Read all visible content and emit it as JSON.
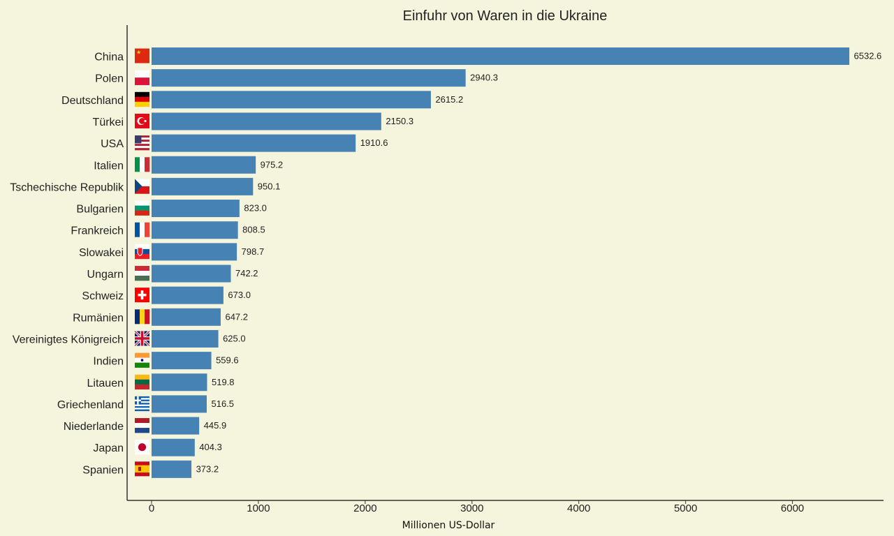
{
  "chart_data": {
    "type": "bar",
    "orientation": "horizontal",
    "title": "Einfuhr von Waren in die Ukraine",
    "xlabel": "Millionen US-Dollar",
    "ylabel": "",
    "xlim": [
      -230,
      6880
    ],
    "x_ticks": [
      0,
      1000,
      2000,
      3000,
      4000,
      5000,
      6000
    ],
    "grid": false,
    "bar_color": "#4682b4",
    "background": "#f5f4dc",
    "categories": [
      "China",
      "Polen",
      "Deutschland",
      "Türkei",
      "USA",
      "Italien",
      "Tschechische Republik",
      "Bulgarien",
      "Frankreich",
      "Slowakei",
      "Ungarn",
      "Schweiz",
      "Rumänien",
      "Vereinigtes Königreich",
      "Indien",
      "Litauen",
      "Griechenland",
      "Niederlande",
      "Japan",
      "Spanien"
    ],
    "values": [
      6532.6,
      2940.3,
      2615.2,
      2150.3,
      1910.6,
      975.2,
      950.1,
      823.0,
      808.5,
      798.7,
      742.2,
      673.0,
      647.2,
      625.0,
      559.6,
      519.8,
      516.5,
      445.9,
      404.3,
      373.2
    ],
    "value_labels": [
      "6532.6",
      "2940.3",
      "2615.2",
      "2150.3",
      "1910.6",
      "975.2",
      "950.1",
      "823.0",
      "808.5",
      "798.7",
      "742.2",
      "673.0",
      "647.2",
      "625.0",
      "559.6",
      "519.8",
      "516.5",
      "445.9",
      "404.3",
      "373.2"
    ],
    "flag_icons": [
      "flag-china-icon",
      "flag-poland-icon",
      "flag-germany-icon",
      "flag-turkey-icon",
      "flag-usa-icon",
      "flag-italy-icon",
      "flag-czech-icon",
      "flag-bulgaria-icon",
      "flag-france-icon",
      "flag-slovakia-icon",
      "flag-hungary-icon",
      "flag-switzerland-icon",
      "flag-romania-icon",
      "flag-uk-icon",
      "flag-india-icon",
      "flag-lithuania-icon",
      "flag-greece-icon",
      "flag-netherlands-icon",
      "flag-japan-icon",
      "flag-spain-icon"
    ]
  }
}
